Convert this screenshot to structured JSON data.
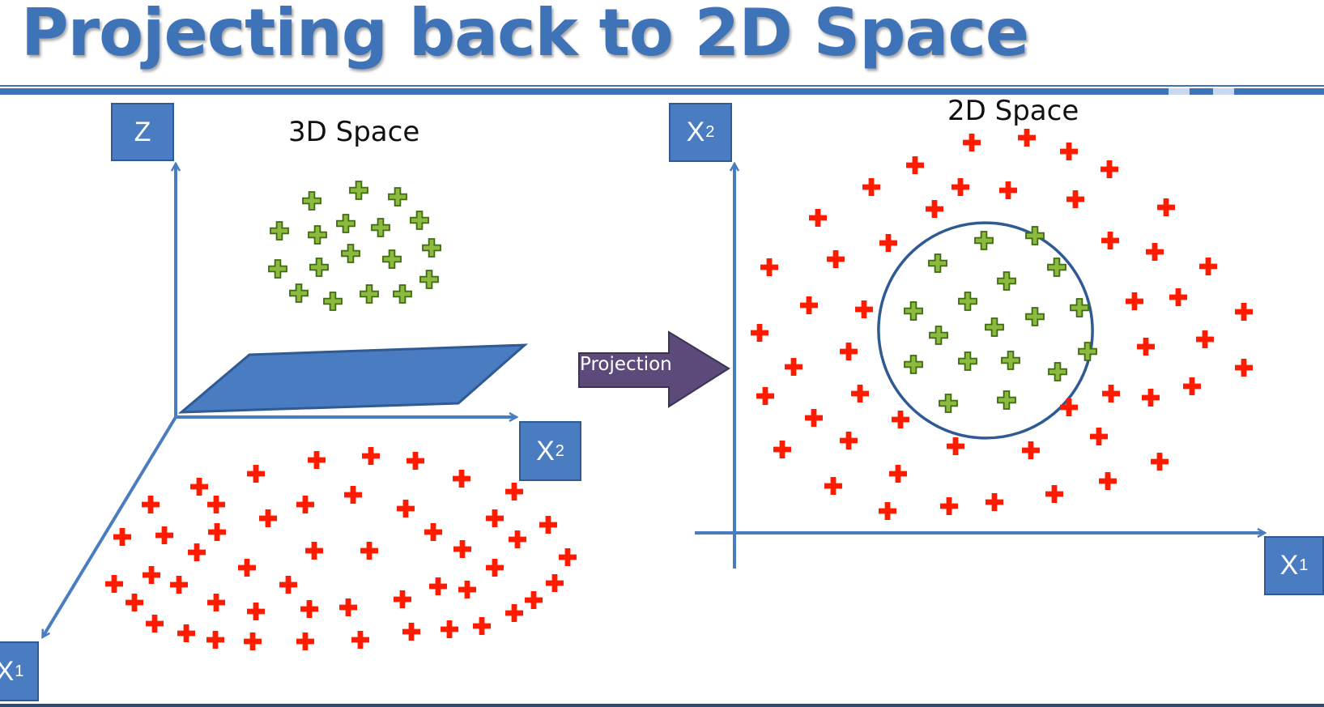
{
  "slide": {
    "title": "Projecting back to 2D Space"
  },
  "left_panel": {
    "label": "3D Space",
    "axes": {
      "z": "Z",
      "x2": {
        "main": "X",
        "sub": "2"
      },
      "x1": {
        "main": "X",
        "sub": "1"
      }
    }
  },
  "arrow": {
    "label": "Projection"
  },
  "right_panel": {
    "label": "2D Space",
    "axes": {
      "x2": {
        "main": "X",
        "sub": "2"
      },
      "x1": {
        "main": "X",
        "sub": "1"
      }
    }
  },
  "colors": {
    "title": "#3f73b8",
    "axis": "#4a7cc2",
    "plane": "#4a7cc2",
    "red_point": "#ff1a00",
    "green_point": "#8cba3c",
    "arrow_fill": "#5c4a7a",
    "circle": "#2f5a93"
  }
}
